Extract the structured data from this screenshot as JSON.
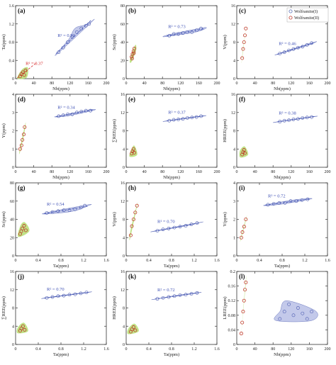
{
  "legend": {
    "items": [
      {
        "label": "Wolframite(I)",
        "color": "#5a6fb5"
      },
      {
        "label": "Wolframite(II)",
        "color": "#c0392b"
      }
    ]
  },
  "colors": {
    "w1_fill": "#b9bfe6",
    "w1_stroke": "#4a5ab0",
    "w1_line": "#3f51b5",
    "w2_fill": "#b9e07a",
    "w2_stroke": "#d38b27",
    "w2_point": "#c0392b",
    "w2_line": "#d62728"
  },
  "chart_data": [
    {
      "id": "a",
      "label": "(a)",
      "type": "scatter",
      "xlabel": "Nb(ppm)",
      "ylabel": "Ta(ppm)",
      "xlim": [
        0,
        200
      ],
      "ylim": [
        0,
        1.6
      ],
      "xticks": [
        "0",
        "40",
        "80",
        "120",
        "160",
        "200"
      ],
      "yticks": [
        "0",
        "0.4",
        "0.8",
        "1.2",
        "1.6"
      ],
      "r2_w1": "R² = 0.92",
      "r2_w2": "R² = 0.37",
      "w1": {
        "x": [
          95,
          105,
          115,
          125,
          135,
          145,
          155,
          162
        ],
        "y": [
          0.58,
          0.68,
          0.8,
          0.92,
          1.02,
          1.1,
          1.16,
          1.2
        ]
      },
      "w2": {
        "x": [
          10,
          13,
          16,
          19,
          22
        ],
        "y": [
          0.05,
          0.1,
          0.14,
          0.08,
          0.18
        ]
      }
    },
    {
      "id": "b",
      "label": "(b)",
      "type": "scatter",
      "xlabel": "Nb(ppm)",
      "ylabel": "Sc(ppm)",
      "xlim": [
        0,
        200
      ],
      "ylim": [
        0,
        80
      ],
      "xticks": [
        "0",
        "40",
        "80",
        "120",
        "160",
        "200"
      ],
      "yticks": [
        "0",
        "20",
        "40",
        "60",
        "80"
      ],
      "r2_w1": "R² = 0.73",
      "w1": {
        "x": [
          95,
          105,
          115,
          125,
          135,
          145,
          155,
          165
        ],
        "y": [
          47,
          49,
          49,
          50,
          51,
          51,
          53,
          55
        ]
      },
      "w2": {
        "x": [
          12,
          14,
          16,
          18,
          13,
          17
        ],
        "y": [
          24,
          27,
          30,
          33,
          22,
          28
        ]
      }
    },
    {
      "id": "c",
      "label": "(c)",
      "type": "scatter",
      "xlabel": "Nb(ppm)",
      "ylabel": "V(ppm)",
      "xlim": [
        0,
        200
      ],
      "ylim": [
        0,
        16
      ],
      "xticks": [
        "0",
        "40",
        "80",
        "120",
        "160",
        "200"
      ],
      "yticks": [
        "0",
        "4",
        "8",
        "12",
        "16"
      ],
      "r2_w1": "R² = 0.46",
      "w1": {
        "x": [
          95,
          105,
          115,
          125,
          135,
          145,
          155,
          165
        ],
        "y": [
          5.5,
          5.8,
          6.2,
          6.5,
          6.8,
          7.0,
          7.4,
          7.8
        ]
      },
      "w2": {
        "x": [
          12,
          14,
          16,
          18,
          20
        ],
        "y": [
          4.5,
          6.5,
          8.0,
          9.5,
          11.0
        ]
      }
    },
    {
      "id": "d",
      "label": "(d)",
      "type": "scatter",
      "xlabel": "Nb(ppm)",
      "ylabel": "Y(ppm)",
      "xlim": [
        0,
        200
      ],
      "ylim": [
        0,
        4
      ],
      "xticks": [
        "0",
        "40",
        "80",
        "120",
        "160",
        "200"
      ],
      "yticks": [
        "0",
        "1",
        "2",
        "3",
        "4"
      ],
      "r2_w1": "R² = 0.34",
      "w1": {
        "x": [
          95,
          105,
          115,
          125,
          135,
          145,
          155,
          165
        ],
        "y": [
          2.8,
          2.85,
          2.9,
          2.9,
          3.0,
          3.05,
          3.1,
          3.1
        ]
      },
      "w2": {
        "x": [
          10,
          13,
          15,
          18,
          20
        ],
        "y": [
          1.0,
          1.2,
          1.5,
          1.8,
          2.2
        ]
      }
    },
    {
      "id": "e",
      "label": "(e)",
      "type": "scatter",
      "xlabel": "Nb(ppm)",
      "ylabel": "∑REE(ppm)",
      "xlim": [
        0,
        200
      ],
      "ylim": [
        0,
        16
      ],
      "xticks": [
        "0",
        "40",
        "80",
        "120",
        "160",
        "200"
      ],
      "yticks": [
        "0",
        "4",
        "8",
        "12",
        "16"
      ],
      "r2_w1": "R² = 0.37",
      "w1": {
        "x": [
          95,
          105,
          115,
          125,
          135,
          145,
          155,
          165
        ],
        "y": [
          10.2,
          10.4,
          10.5,
          10.6,
          10.8,
          10.9,
          11.0,
          11.2
        ]
      },
      "w2": {
        "x": [
          12,
          14,
          16,
          18
        ],
        "y": [
          3.0,
          3.5,
          4.0,
          3.2
        ]
      }
    },
    {
      "id": "f",
      "label": "(f)",
      "type": "scatter",
      "xlabel": "Nb(ppm)",
      "ylabel": "HREE(ppm)",
      "xlim": [
        0,
        200
      ],
      "ylim": [
        0,
        16
      ],
      "xticks": [
        "0",
        "40",
        "80",
        "120",
        "160",
        "200"
      ],
      "yticks": [
        "0",
        "4",
        "8",
        "12",
        "16"
      ],
      "r2_w1": "R² = 0.38",
      "w1": {
        "x": [
          95,
          105,
          115,
          125,
          135,
          145,
          155,
          165
        ],
        "y": [
          10.0,
          10.2,
          10.3,
          10.5,
          10.6,
          10.8,
          10.9,
          11.0
        ]
      },
      "w2": {
        "x": [
          12,
          14,
          16,
          18
        ],
        "y": [
          2.8,
          3.3,
          3.8,
          3.1
        ]
      }
    },
    {
      "id": "g",
      "label": "(g)",
      "type": "scatter",
      "xlabel": "Ta(ppm)",
      "ylabel": "Sc(ppm)",
      "xlim": [
        0,
        1.6
      ],
      "ylim": [
        0,
        80
      ],
      "xticks": [
        "0",
        "0.4",
        "0.8",
        "1.2",
        "1.6"
      ],
      "yticks": [
        "0",
        "20",
        "40",
        "60",
        "80"
      ],
      "r2_w1": "R² = 0.54",
      "w1": {
        "x": [
          0.55,
          0.65,
          0.75,
          0.85,
          0.95,
          1.05,
          1.15,
          1.22
        ],
        "y": [
          47,
          48,
          49,
          50,
          50,
          51,
          53,
          55
        ]
      },
      "w2": {
        "x": [
          0.08,
          0.1,
          0.12,
          0.15,
          0.18
        ],
        "y": [
          24,
          27,
          30,
          33,
          28
        ]
      }
    },
    {
      "id": "h",
      "label": "(h)",
      "type": "scatter",
      "xlabel": "Ta(ppm)",
      "ylabel": "V(ppm)",
      "xlim": [
        0,
        1.6
      ],
      "ylim": [
        0,
        16
      ],
      "xticks": [
        "0",
        "0.4",
        "0.8",
        "1.2",
        "1.6"
      ],
      "yticks": [
        "0",
        "4",
        "8",
        "12",
        "16"
      ],
      "r2_w1": "R² = 0.70",
      "w1": {
        "x": [
          0.55,
          0.65,
          0.75,
          0.85,
          0.95,
          1.05,
          1.15,
          1.25
        ],
        "y": [
          5.5,
          5.8,
          6.0,
          6.2,
          6.4,
          6.6,
          6.9,
          7.2
        ]
      },
      "w2": {
        "x": [
          0.08,
          0.1,
          0.13,
          0.16,
          0.19
        ],
        "y": [
          4.5,
          6.5,
          8.0,
          9.5,
          11.0
        ]
      }
    },
    {
      "id": "i",
      "label": "(i)",
      "type": "scatter",
      "xlabel": "Ta(ppm)",
      "ylabel": "Y(ppm)",
      "xlim": [
        0,
        1.6
      ],
      "ylim": [
        0,
        4
      ],
      "xticks": [
        "0",
        "0.4",
        "0.8",
        "1.2",
        "1.6"
      ],
      "yticks": [
        "0",
        "1",
        "2",
        "3",
        "4"
      ],
      "r2_w1": "R² = 0.72",
      "w1": {
        "x": [
          0.55,
          0.65,
          0.75,
          0.85,
          0.95,
          1.05,
          1.15,
          1.25
        ],
        "y": [
          2.8,
          2.85,
          2.9,
          2.9,
          3.0,
          3.0,
          3.05,
          3.1
        ]
      },
      "w2": {
        "x": [
          0.08,
          0.1,
          0.13,
          0.16
        ],
        "y": [
          1.0,
          1.3,
          1.6,
          2.0
        ]
      }
    },
    {
      "id": "j",
      "label": "(j)",
      "type": "scatter",
      "xlabel": "Ta(ppm)",
      "ylabel": "∑REE(ppm)",
      "xlim": [
        0,
        1.6
      ],
      "ylim": [
        0,
        16
      ],
      "xticks": [
        "0",
        "0.4",
        "0.8",
        "1.2",
        "1.6"
      ],
      "yticks": [
        "0",
        "4",
        "8",
        "12",
        "16"
      ],
      "r2_w1": "R² = 0.70",
      "w1": {
        "x": [
          0.55,
          0.65,
          0.75,
          0.85,
          0.95,
          1.05,
          1.15,
          1.25
        ],
        "y": [
          10.2,
          10.4,
          10.6,
          10.7,
          10.9,
          11.0,
          11.2,
          11.4
        ]
      },
      "w2": {
        "x": [
          0.08,
          0.1,
          0.13,
          0.16
        ],
        "y": [
          3.0,
          3.5,
          4.0,
          3.2
        ]
      }
    },
    {
      "id": "k",
      "label": "(k)",
      "type": "scatter",
      "xlabel": "Ta(ppm)",
      "ylabel": "HREE(ppm)",
      "xlim": [
        0,
        1.6
      ],
      "ylim": [
        0,
        16
      ],
      "xticks": [
        "0",
        "0.4",
        "0.8",
        "1.2",
        "1.6"
      ],
      "yticks": [
        "0",
        "4",
        "8",
        "12",
        "16"
      ],
      "r2_w1": "R² = 0.72",
      "w1": {
        "x": [
          0.55,
          0.65,
          0.75,
          0.85,
          0.95,
          1.05,
          1.15,
          1.25
        ],
        "y": [
          10.0,
          10.2,
          10.4,
          10.6,
          10.8,
          10.9,
          11.1,
          11.3
        ]
      },
      "w2": {
        "x": [
          0.08,
          0.1,
          0.13,
          0.16
        ],
        "y": [
          2.8,
          3.3,
          3.8,
          3.1
        ]
      }
    },
    {
      "id": "l",
      "label": "(l)",
      "type": "scatter",
      "xlabel": "Nb(ppm)",
      "ylabel": "LREE(ppm)",
      "xlim": [
        0,
        200
      ],
      "ylim": [
        0,
        0.2
      ],
      "xticks": [
        "0",
        "40",
        "80",
        "120",
        "160",
        "200"
      ],
      "yticks": [
        "0",
        "0.04",
        "0.08",
        "0.12",
        "0.16",
        "0.2"
      ],
      "w1": {
        "x": [
          95,
          105,
          115,
          125,
          135,
          145,
          155,
          165
        ],
        "y": [
          0.07,
          0.09,
          0.11,
          0.08,
          0.1,
          0.085,
          0.07,
          0.09
        ]
      },
      "w2": {
        "x": [
          10,
          12,
          14,
          16,
          18,
          20
        ],
        "y": [
          0.03,
          0.06,
          0.09,
          0.12,
          0.15,
          0.17
        ]
      }
    }
  ]
}
